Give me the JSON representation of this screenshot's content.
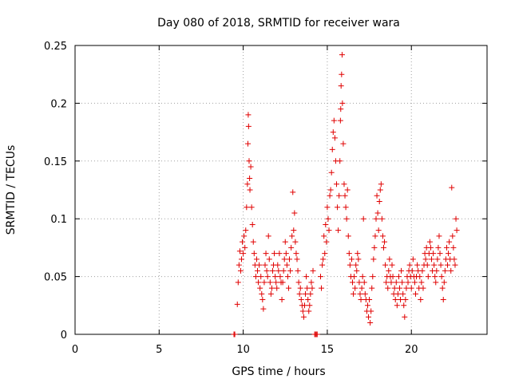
{
  "chart_data": {
    "type": "scatter",
    "title": "Day 080 of 2018, SRMTID for receiver wara",
    "xlabel": "GPS time / hours",
    "ylabel": "SRMTID / TECUs",
    "xlim": [
      0,
      24.5
    ],
    "ylim": [
      0,
      0.25
    ],
    "xticks": [
      0,
      5,
      10,
      15,
      20
    ],
    "xtick_labels": [
      "0",
      "5",
      "10",
      "15",
      "20"
    ],
    "yticks": [
      0,
      0.05,
      0.1,
      0.15,
      0.2,
      0.25
    ],
    "ytick_labels": [
      "0",
      "0.05",
      "0.1",
      "0.15",
      "0.2",
      "0.25"
    ],
    "grid": true,
    "marker": "+",
    "color": "#e00000",
    "series": [
      {
        "name": "SRMTID",
        "points": [
          [
            9.45,
            0.0
          ],
          [
            9.5,
            0.0
          ],
          [
            14.25,
            0.0
          ],
          [
            14.3,
            0.0
          ],
          [
            14.35,
            0.0
          ],
          [
            14.4,
            0.0
          ],
          [
            9.65,
            0.026
          ],
          [
            9.7,
            0.045
          ],
          [
            9.75,
            0.06
          ],
          [
            9.8,
            0.072
          ],
          [
            9.85,
            0.055
          ],
          [
            9.9,
            0.065
          ],
          [
            9.95,
            0.08
          ],
          [
            10.0,
            0.07
          ],
          [
            10.05,
            0.085
          ],
          [
            10.1,
            0.075
          ],
          [
            10.15,
            0.09
          ],
          [
            10.2,
            0.11
          ],
          [
            10.25,
            0.13
          ],
          [
            10.28,
            0.165
          ],
          [
            10.3,
            0.19
          ],
          [
            10.32,
            0.18
          ],
          [
            10.35,
            0.15
          ],
          [
            10.38,
            0.135
          ],
          [
            10.4,
            0.125
          ],
          [
            10.45,
            0.145
          ],
          [
            10.5,
            0.11
          ],
          [
            10.55,
            0.095
          ],
          [
            10.6,
            0.08
          ],
          [
            10.65,
            0.07
          ],
          [
            10.7,
            0.06
          ],
          [
            10.75,
            0.05
          ],
          [
            10.8,
            0.065
          ],
          [
            10.85,
            0.055
          ],
          [
            10.9,
            0.045
          ],
          [
            10.95,
            0.06
          ],
          [
            11.0,
            0.04
          ],
          [
            11.05,
            0.05
          ],
          [
            11.1,
            0.035
          ],
          [
            11.15,
            0.03
          ],
          [
            11.2,
            0.022
          ],
          [
            11.25,
            0.045
          ],
          [
            11.3,
            0.06
          ],
          [
            11.35,
            0.07
          ],
          [
            11.4,
            0.055
          ],
          [
            11.45,
            0.05
          ],
          [
            11.5,
            0.085
          ],
          [
            11.55,
            0.065
          ],
          [
            11.6,
            0.045
          ],
          [
            11.65,
            0.035
          ],
          [
            11.7,
            0.04
          ],
          [
            11.75,
            0.055
          ],
          [
            11.8,
            0.06
          ],
          [
            11.85,
            0.07
          ],
          [
            11.9,
            0.05
          ],
          [
            11.95,
            0.045
          ],
          [
            12.0,
            0.04
          ],
          [
            12.05,
            0.06
          ],
          [
            12.1,
            0.055
          ],
          [
            12.15,
            0.07
          ],
          [
            12.2,
            0.05
          ],
          [
            12.25,
            0.045
          ],
          [
            12.3,
            0.03
          ],
          [
            12.35,
            0.045
          ],
          [
            12.4,
            0.055
          ],
          [
            12.45,
            0.065
          ],
          [
            12.5,
            0.08
          ],
          [
            12.55,
            0.07
          ],
          [
            12.6,
            0.06
          ],
          [
            12.65,
            0.05
          ],
          [
            12.7,
            0.04
          ],
          [
            12.75,
            0.065
          ],
          [
            12.8,
            0.055
          ],
          [
            12.85,
            0.075
          ],
          [
            12.9,
            0.085
          ],
          [
            12.95,
            0.123
          ],
          [
            13.0,
            0.09
          ],
          [
            13.05,
            0.105
          ],
          [
            13.1,
            0.08
          ],
          [
            13.15,
            0.07
          ],
          [
            13.2,
            0.065
          ],
          [
            13.25,
            0.055
          ],
          [
            13.3,
            0.045
          ],
          [
            13.35,
            0.035
          ],
          [
            13.4,
            0.04
          ],
          [
            13.45,
            0.03
          ],
          [
            13.5,
            0.025
          ],
          [
            13.55,
            0.02
          ],
          [
            13.6,
            0.015
          ],
          [
            13.65,
            0.025
          ],
          [
            13.7,
            0.035
          ],
          [
            13.75,
            0.05
          ],
          [
            13.8,
            0.04
          ],
          [
            13.85,
            0.03
          ],
          [
            13.9,
            0.02
          ],
          [
            13.95,
            0.025
          ],
          [
            14.0,
            0.035
          ],
          [
            14.05,
            0.045
          ],
          [
            14.1,
            0.04
          ],
          [
            14.15,
            0.055
          ],
          [
            14.6,
            0.05
          ],
          [
            14.65,
            0.04
          ],
          [
            14.7,
            0.06
          ],
          [
            14.75,
            0.065
          ],
          [
            14.8,
            0.085
          ],
          [
            14.85,
            0.07
          ],
          [
            14.9,
            0.095
          ],
          [
            14.95,
            0.08
          ],
          [
            15.0,
            0.11
          ],
          [
            15.05,
            0.1
          ],
          [
            15.1,
            0.09
          ],
          [
            15.15,
            0.12
          ],
          [
            15.2,
            0.125
          ],
          [
            15.25,
            0.14
          ],
          [
            15.3,
            0.16
          ],
          [
            15.35,
            0.175
          ],
          [
            15.4,
            0.185
          ],
          [
            15.45,
            0.17
          ],
          [
            15.5,
            0.15
          ],
          [
            15.55,
            0.13
          ],
          [
            15.6,
            0.11
          ],
          [
            15.65,
            0.09
          ],
          [
            15.7,
            0.12
          ],
          [
            15.75,
            0.15
          ],
          [
            15.78,
            0.185
          ],
          [
            15.8,
            0.195
          ],
          [
            15.82,
            0.215
          ],
          [
            15.85,
            0.225
          ],
          [
            15.88,
            0.242
          ],
          [
            15.9,
            0.2
          ],
          [
            15.95,
            0.165
          ],
          [
            16.0,
            0.13
          ],
          [
            16.05,
            0.12
          ],
          [
            16.1,
            0.11
          ],
          [
            16.15,
            0.1
          ],
          [
            16.2,
            0.125
          ],
          [
            16.25,
            0.085
          ],
          [
            16.3,
            0.07
          ],
          [
            16.35,
            0.06
          ],
          [
            16.4,
            0.05
          ],
          [
            16.45,
            0.065
          ],
          [
            16.5,
            0.045
          ],
          [
            16.55,
            0.035
          ],
          [
            16.6,
            0.05
          ],
          [
            16.65,
            0.04
          ],
          [
            16.7,
            0.06
          ],
          [
            16.75,
            0.055
          ],
          [
            16.8,
            0.07
          ],
          [
            16.85,
            0.065
          ],
          [
            16.9,
            0.045
          ],
          [
            16.95,
            0.035
          ],
          [
            17.0,
            0.03
          ],
          [
            17.05,
            0.04
          ],
          [
            17.1,
            0.05
          ],
          [
            17.15,
            0.1
          ],
          [
            17.2,
            0.045
          ],
          [
            17.25,
            0.035
          ],
          [
            17.3,
            0.03
          ],
          [
            17.35,
            0.02
          ],
          [
            17.4,
            0.025
          ],
          [
            17.45,
            0.015
          ],
          [
            17.5,
            0.03
          ],
          [
            17.55,
            0.01
          ],
          [
            17.6,
            0.02
          ],
          [
            17.65,
            0.04
          ],
          [
            17.7,
            0.05
          ],
          [
            17.75,
            0.065
          ],
          [
            17.8,
            0.075
          ],
          [
            17.85,
            0.085
          ],
          [
            17.9,
            0.1
          ],
          [
            17.95,
            0.12
          ],
          [
            18.0,
            0.105
          ],
          [
            18.05,
            0.09
          ],
          [
            18.1,
            0.115
          ],
          [
            18.15,
            0.125
          ],
          [
            18.2,
            0.13
          ],
          [
            18.25,
            0.1
          ],
          [
            18.3,
            0.085
          ],
          [
            18.35,
            0.075
          ],
          [
            18.4,
            0.08
          ],
          [
            18.45,
            0.06
          ],
          [
            18.5,
            0.045
          ],
          [
            18.55,
            0.05
          ],
          [
            18.6,
            0.04
          ],
          [
            18.65,
            0.055
          ],
          [
            18.7,
            0.065
          ],
          [
            18.75,
            0.05
          ],
          [
            18.8,
            0.045
          ],
          [
            18.85,
            0.06
          ],
          [
            18.9,
            0.05
          ],
          [
            18.95,
            0.035
          ],
          [
            19.0,
            0.04
          ],
          [
            19.05,
            0.03
          ],
          [
            19.1,
            0.045
          ],
          [
            19.15,
            0.025
          ],
          [
            19.2,
            0.035
          ],
          [
            19.25,
            0.05
          ],
          [
            19.3,
            0.04
          ],
          [
            19.35,
            0.03
          ],
          [
            19.4,
            0.055
          ],
          [
            19.45,
            0.045
          ],
          [
            19.5,
            0.035
          ],
          [
            19.55,
            0.025
          ],
          [
            19.6,
            0.015
          ],
          [
            19.65,
            0.03
          ],
          [
            19.7,
            0.04
          ],
          [
            19.75,
            0.05
          ],
          [
            19.8,
            0.045
          ],
          [
            19.85,
            0.055
          ],
          [
            19.9,
            0.06
          ],
          [
            19.95,
            0.05
          ],
          [
            20.0,
            0.04
          ],
          [
            20.05,
            0.055
          ],
          [
            20.1,
            0.065
          ],
          [
            20.15,
            0.05
          ],
          [
            20.2,
            0.045
          ],
          [
            20.25,
            0.035
          ],
          [
            20.3,
            0.05
          ],
          [
            20.35,
            0.06
          ],
          [
            20.4,
            0.055
          ],
          [
            20.45,
            0.04
          ],
          [
            20.5,
            0.05
          ],
          [
            20.55,
            0.03
          ],
          [
            20.6,
            0.045
          ],
          [
            20.65,
            0.055
          ],
          [
            20.7,
            0.04
          ],
          [
            20.75,
            0.06
          ],
          [
            20.8,
            0.07
          ],
          [
            20.85,
            0.065
          ],
          [
            20.9,
            0.075
          ],
          [
            20.95,
            0.06
          ],
          [
            21.0,
            0.05
          ],
          [
            21.05,
            0.07
          ],
          [
            21.1,
            0.08
          ],
          [
            21.15,
            0.075
          ],
          [
            21.2,
            0.065
          ],
          [
            21.25,
            0.055
          ],
          [
            21.3,
            0.07
          ],
          [
            21.35,
            0.06
          ],
          [
            21.4,
            0.05
          ],
          [
            21.45,
            0.045
          ],
          [
            21.5,
            0.055
          ],
          [
            21.55,
            0.065
          ],
          [
            21.6,
            0.075
          ],
          [
            21.65,
            0.085
          ],
          [
            21.7,
            0.07
          ],
          [
            21.75,
            0.06
          ],
          [
            21.8,
            0.05
          ],
          [
            21.85,
            0.04
          ],
          [
            21.9,
            0.03
          ],
          [
            21.95,
            0.045
          ],
          [
            22.0,
            0.055
          ],
          [
            22.05,
            0.065
          ],
          [
            22.1,
            0.075
          ],
          [
            22.15,
            0.06
          ],
          [
            22.2,
            0.07
          ],
          [
            22.25,
            0.08
          ],
          [
            22.3,
            0.065
          ],
          [
            22.35,
            0.055
          ],
          [
            22.4,
            0.127
          ],
          [
            22.45,
            0.085
          ],
          [
            22.5,
            0.075
          ],
          [
            22.55,
            0.065
          ],
          [
            22.6,
            0.06
          ],
          [
            22.65,
            0.1
          ],
          [
            22.7,
            0.09
          ]
        ]
      }
    ]
  }
}
